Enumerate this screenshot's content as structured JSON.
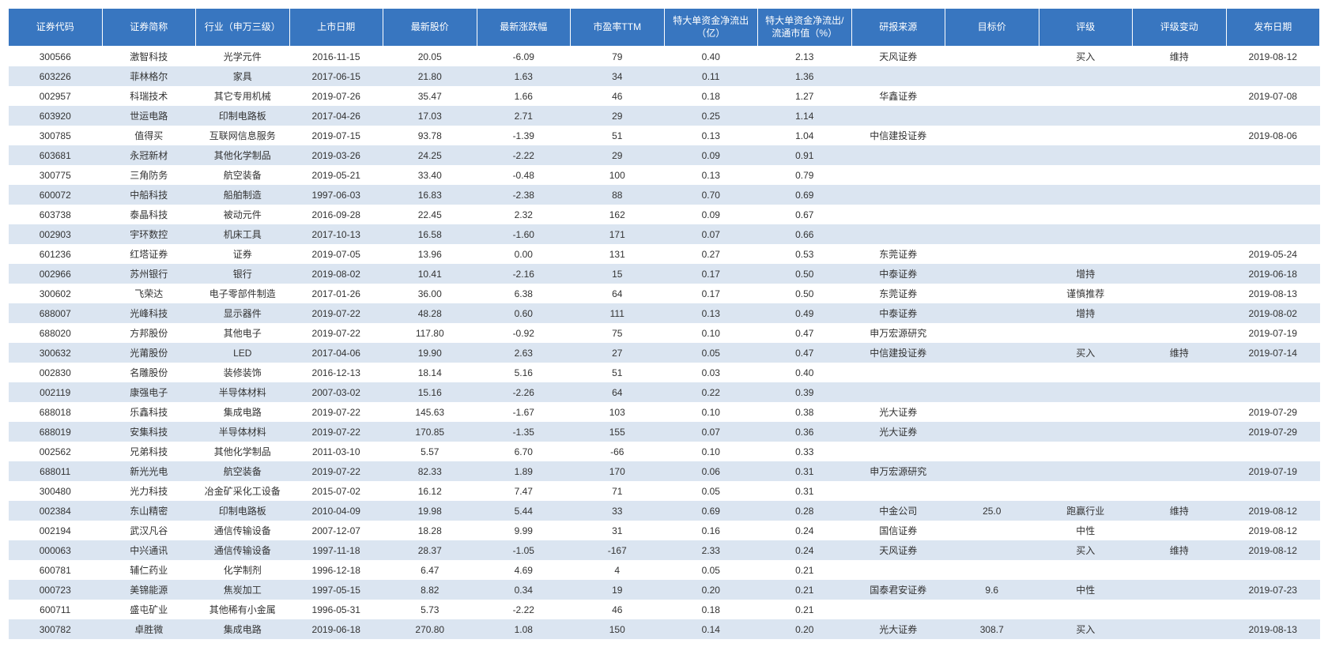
{
  "table": {
    "header_bg": "#3876c0",
    "header_text_color": "#ffffff",
    "row_odd_bg": "#ffffff",
    "row_even_bg": "#dbe5f1",
    "text_color": "#333333",
    "font_size": 12,
    "columns": [
      "证券代码",
      "证券简称",
      "行业（申万三级）",
      "上市日期",
      "最新股价",
      "最新涨跌幅",
      "市盈率TTM",
      "特大单资金净流出（亿）",
      "特大单资金净流出/流通市值（%）",
      "研报来源",
      "目标价",
      "评级",
      "评级变动",
      "发布日期"
    ],
    "rows": [
      [
        "300566",
        "激智科技",
        "光学元件",
        "2016-11-15",
        "20.05",
        "-6.09",
        "79",
        "0.40",
        "2.13",
        "天风证券",
        "",
        "买入",
        "维持",
        "2019-08-12"
      ],
      [
        "603226",
        "菲林格尔",
        "家具",
        "2017-06-15",
        "21.80",
        "1.63",
        "34",
        "0.11",
        "1.36",
        "",
        "",
        "",
        "",
        ""
      ],
      [
        "002957",
        "科瑞技术",
        "其它专用机械",
        "2019-07-26",
        "35.47",
        "1.66",
        "46",
        "0.18",
        "1.27",
        "华鑫证券",
        "",
        "",
        "",
        "2019-07-08"
      ],
      [
        "603920",
        "世运电路",
        "印制电路板",
        "2017-04-26",
        "17.03",
        "2.71",
        "29",
        "0.25",
        "1.14",
        "",
        "",
        "",
        "",
        ""
      ],
      [
        "300785",
        "值得买",
        "互联网信息服务",
        "2019-07-15",
        "93.78",
        "-1.39",
        "51",
        "0.13",
        "1.04",
        "中信建投证券",
        "",
        "",
        "",
        "2019-08-06"
      ],
      [
        "603681",
        "永冠新材",
        "其他化学制品",
        "2019-03-26",
        "24.25",
        "-2.22",
        "29",
        "0.09",
        "0.91",
        "",
        "",
        "",
        "",
        ""
      ],
      [
        "300775",
        "三角防务",
        "航空装备",
        "2019-05-21",
        "33.40",
        "-0.48",
        "100",
        "0.13",
        "0.79",
        "",
        "",
        "",
        "",
        ""
      ],
      [
        "600072",
        "中船科技",
        "船舶制造",
        "1997-06-03",
        "16.83",
        "-2.38",
        "88",
        "0.70",
        "0.69",
        "",
        "",
        "",
        "",
        ""
      ],
      [
        "603738",
        "泰晶科技",
        "被动元件",
        "2016-09-28",
        "22.45",
        "2.32",
        "162",
        "0.09",
        "0.67",
        "",
        "",
        "",
        "",
        ""
      ],
      [
        "002903",
        "宇环数控",
        "机床工具",
        "2017-10-13",
        "16.58",
        "-1.60",
        "171",
        "0.07",
        "0.66",
        "",
        "",
        "",
        "",
        ""
      ],
      [
        "601236",
        "红塔证券",
        "证券",
        "2019-07-05",
        "13.96",
        "0.00",
        "131",
        "0.27",
        "0.53",
        "东莞证券",
        "",
        "",
        "",
        "2019-05-24"
      ],
      [
        "002966",
        "苏州银行",
        "银行",
        "2019-08-02",
        "10.41",
        "-2.16",
        "15",
        "0.17",
        "0.50",
        "中泰证券",
        "",
        "增持",
        "",
        "2019-06-18"
      ],
      [
        "300602",
        "飞荣达",
        "电子零部件制造",
        "2017-01-26",
        "36.00",
        "6.38",
        "64",
        "0.17",
        "0.50",
        "东莞证券",
        "",
        "谨慎推荐",
        "",
        "2019-08-13"
      ],
      [
        "688007",
        "光峰科技",
        "显示器件",
        "2019-07-22",
        "48.28",
        "0.60",
        "111",
        "0.13",
        "0.49",
        "中泰证券",
        "",
        "增持",
        "",
        "2019-08-02"
      ],
      [
        "688020",
        "方邦股份",
        "其他电子",
        "2019-07-22",
        "117.80",
        "-0.92",
        "75",
        "0.10",
        "0.47",
        "申万宏源研究",
        "",
        "",
        "",
        "2019-07-19"
      ],
      [
        "300632",
        "光莆股份",
        "LED",
        "2017-04-06",
        "19.90",
        "2.63",
        "27",
        "0.05",
        "0.47",
        "中信建投证券",
        "",
        "买入",
        "维持",
        "2019-07-14"
      ],
      [
        "002830",
        "名雕股份",
        "装修装饰",
        "2016-12-13",
        "18.14",
        "5.16",
        "51",
        "0.03",
        "0.40",
        "",
        "",
        "",
        "",
        ""
      ],
      [
        "002119",
        "康强电子",
        "半导体材料",
        "2007-03-02",
        "15.16",
        "-2.26",
        "64",
        "0.22",
        "0.39",
        "",
        "",
        "",
        "",
        ""
      ],
      [
        "688018",
        "乐鑫科技",
        "集成电路",
        "2019-07-22",
        "145.63",
        "-1.67",
        "103",
        "0.10",
        "0.38",
        "光大证券",
        "",
        "",
        "",
        "2019-07-29"
      ],
      [
        "688019",
        "安集科技",
        "半导体材料",
        "2019-07-22",
        "170.85",
        "-1.35",
        "155",
        "0.07",
        "0.36",
        "光大证券",
        "",
        "",
        "",
        "2019-07-29"
      ],
      [
        "002562",
        "兄弟科技",
        "其他化学制品",
        "2011-03-10",
        "5.57",
        "6.70",
        "-66",
        "0.10",
        "0.33",
        "",
        "",
        "",
        "",
        ""
      ],
      [
        "688011",
        "新光光电",
        "航空装备",
        "2019-07-22",
        "82.33",
        "1.89",
        "170",
        "0.06",
        "0.31",
        "申万宏源研究",
        "",
        "",
        "",
        "2019-07-19"
      ],
      [
        "300480",
        "光力科技",
        "冶金矿采化工设备",
        "2015-07-02",
        "16.12",
        "7.47",
        "71",
        "0.05",
        "0.31",
        "",
        "",
        "",
        "",
        ""
      ],
      [
        "002384",
        "东山精密",
        "印制电路板",
        "2010-04-09",
        "19.98",
        "5.44",
        "33",
        "0.69",
        "0.28",
        "中金公司",
        "25.0",
        "跑赢行业",
        "维持",
        "2019-08-12"
      ],
      [
        "002194",
        "武汉凡谷",
        "通信传输设备",
        "2007-12-07",
        "18.28",
        "9.99",
        "31",
        "0.16",
        "0.24",
        "国信证券",
        "",
        "中性",
        "",
        "2019-08-12"
      ],
      [
        "000063",
        "中兴通讯",
        "通信传输设备",
        "1997-11-18",
        "28.37",
        "-1.05",
        "-167",
        "2.33",
        "0.24",
        "天风证券",
        "",
        "买入",
        "维持",
        "2019-08-12"
      ],
      [
        "600781",
        "辅仁药业",
        "化学制剂",
        "1996-12-18",
        "6.47",
        "4.69",
        "4",
        "0.05",
        "0.21",
        "",
        "",
        "",
        "",
        ""
      ],
      [
        "000723",
        "美锦能源",
        "焦炭加工",
        "1997-05-15",
        "8.82",
        "0.34",
        "19",
        "0.20",
        "0.21",
        "国泰君安证券",
        "9.6",
        "中性",
        "",
        "2019-07-23"
      ],
      [
        "600711",
        "盛屯矿业",
        "其他稀有小金属",
        "1996-05-31",
        "5.73",
        "-2.22",
        "46",
        "0.18",
        "0.21",
        "",
        "",
        "",
        "",
        ""
      ],
      [
        "300782",
        "卓胜微",
        "集成电路",
        "2019-06-18",
        "270.80",
        "1.08",
        "150",
        "0.14",
        "0.20",
        "光大证券",
        "308.7",
        "买入",
        "",
        "2019-08-13"
      ]
    ]
  }
}
